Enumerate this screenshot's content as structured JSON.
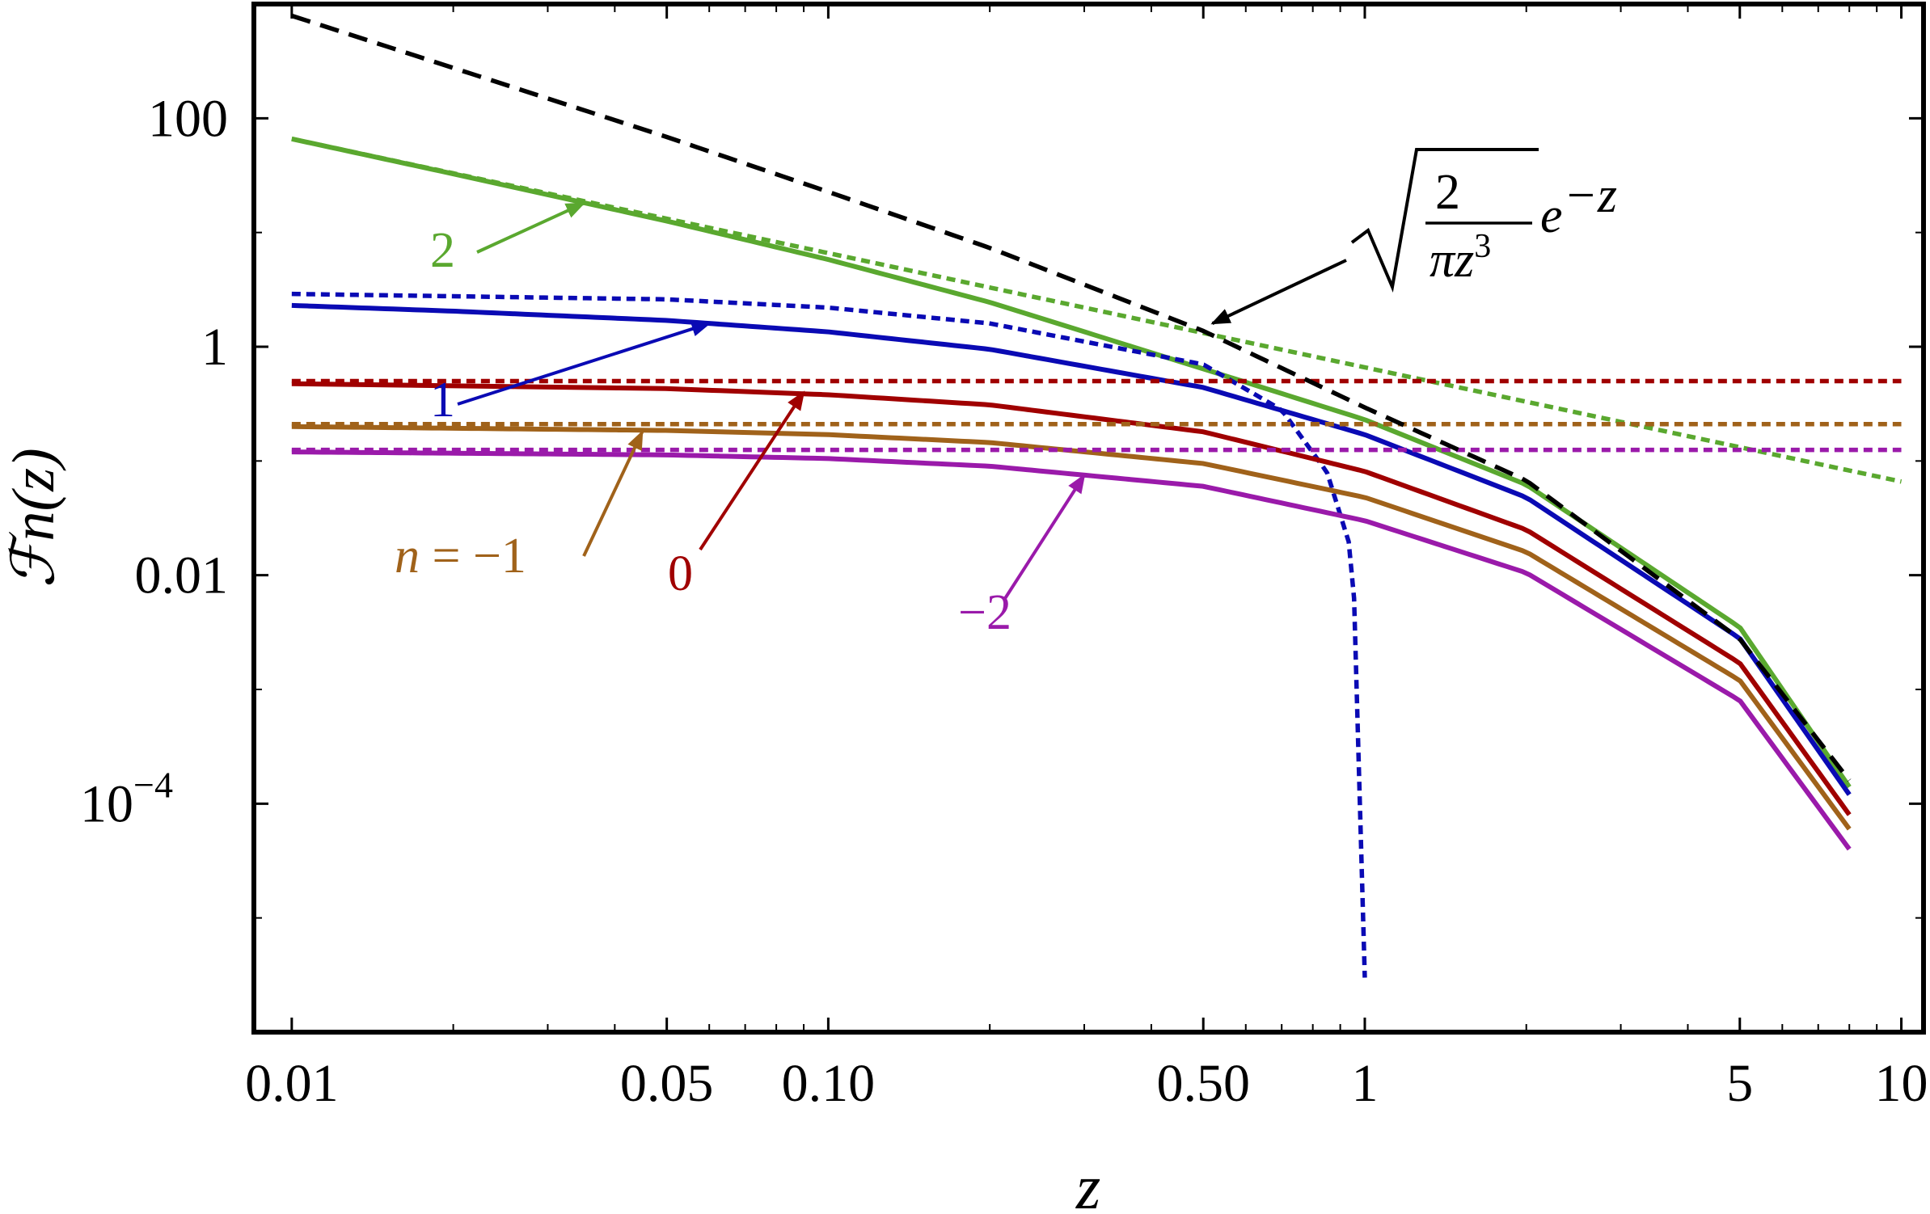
{
  "chart_data": {
    "type": "line",
    "title": "",
    "xlabel": "z",
    "ylabel": "ℱn(z)",
    "x_scale": "log",
    "y_scale": "log",
    "xlim": [
      0.0085,
      11
    ],
    "ylim": [
      1e-06,
      1000
    ],
    "x_ticks": [
      {
        "value": 0.01,
        "label": "0.01"
      },
      {
        "value": 0.05,
        "label": "0.05"
      },
      {
        "value": 0.1,
        "label": "0.10"
      },
      {
        "value": 0.5,
        "label": "0.50"
      },
      {
        "value": 1,
        "label": "1"
      },
      {
        "value": 5,
        "label": "5"
      },
      {
        "value": 10,
        "label": "10"
      }
    ],
    "y_ticks": [
      {
        "value": 100,
        "label": "100"
      },
      {
        "value": 1,
        "label": "1"
      },
      {
        "value": 0.01,
        "label": "0.01"
      },
      {
        "value": 0.0001,
        "label": "10",
        "exponent": "−4"
      }
    ],
    "grid": false,
    "legend": "none",
    "colors": {
      "n2": "#5aa82f",
      "n1": "#0a0ab4",
      "n0": "#a00000",
      "nm1": "#a0621a",
      "nm2": "#9a1aaa",
      "asymptote": "#000000"
    },
    "series": [
      {
        "name": "2",
        "style": "solid",
        "color": "#5aa82f",
        "x": [
          0.01,
          0.02,
          0.05,
          0.1,
          0.2,
          0.5,
          1,
          2,
          5,
          8
        ],
        "y": [
          66,
          32.6,
          12.6,
          5.8,
          2.45,
          0.64,
          0.23,
          0.062,
          0.0035,
          0.00014
        ]
      },
      {
        "name": "2",
        "style": "dotted",
        "color": "#5aa82f",
        "x": [
          0.01,
          0.05,
          0.1,
          0.5,
          1,
          2,
          5,
          10
        ],
        "y": [
          66,
          13.2,
          6.6,
          1.32,
          0.66,
          0.33,
          0.132,
          0.066
        ]
      },
      {
        "name": "1",
        "style": "solid",
        "color": "#0a0ab4",
        "x": [
          0.01,
          0.02,
          0.05,
          0.1,
          0.2,
          0.5,
          1,
          2,
          5,
          8
        ],
        "y": [
          2.3,
          2.05,
          1.7,
          1.35,
          0.95,
          0.44,
          0.17,
          0.048,
          0.0028,
          0.00012
        ]
      },
      {
        "name": "1",
        "style": "dotted",
        "color": "#0a0ab4",
        "x": [
          0.01,
          0.05,
          0.1,
          0.2,
          0.5,
          0.7,
          0.85,
          0.95,
          1.0
        ],
        "y": [
          2.9,
          2.6,
          2.2,
          1.6,
          0.7,
          0.28,
          0.08,
          0.015,
          3e-06
        ]
      },
      {
        "name": "0",
        "style": "solid",
        "color": "#a00000",
        "x": [
          0.01,
          0.05,
          0.1,
          0.2,
          0.5,
          1,
          2,
          5,
          8
        ],
        "y": [
          0.475,
          0.43,
          0.38,
          0.31,
          0.18,
          0.081,
          0.025,
          0.0017,
          8e-05
        ]
      },
      {
        "name": "0",
        "style": "dotted",
        "color": "#a00000",
        "x": [
          0.01,
          10
        ],
        "y": [
          0.5,
          0.5
        ]
      },
      {
        "name": "n = −1",
        "style": "solid",
        "color": "#a0621a",
        "x": [
          0.01,
          0.05,
          0.1,
          0.2,
          0.5,
          1,
          2,
          5,
          8
        ],
        "y": [
          0.2,
          0.185,
          0.17,
          0.145,
          0.095,
          0.048,
          0.016,
          0.0012,
          6e-05
        ]
      },
      {
        "name": "n = −1",
        "style": "dotted",
        "color": "#a0621a",
        "x": [
          0.01,
          10
        ],
        "y": [
          0.21,
          0.21
        ]
      },
      {
        "name": "−2",
        "style": "solid",
        "color": "#9a1aaa",
        "x": [
          0.01,
          0.05,
          0.1,
          0.2,
          0.5,
          1,
          2,
          5,
          8
        ],
        "y": [
          0.12,
          0.113,
          0.105,
          0.09,
          0.06,
          0.03,
          0.0105,
          0.0008,
          4e-05
        ]
      },
      {
        "name": "−2",
        "style": "dotted",
        "color": "#9a1aaa",
        "x": [
          0.01,
          10
        ],
        "y": [
          0.125,
          0.125
        ]
      },
      {
        "name": "asymptote",
        "style": "dashed",
        "color": "#000000",
        "x": [
          0.01,
          0.02,
          0.05,
          0.1,
          0.2,
          0.5,
          1,
          2,
          5,
          8
        ],
        "y": [
          790,
          276,
          68.6,
          22.7,
          7.33,
          1.375,
          0.294,
          0.0675,
          0.00276,
          0.00016
        ]
      }
    ],
    "annotations": [
      {
        "id": "n2",
        "text": "2",
        "color": "#5aa82f",
        "points_to": {
          "x": 0.035,
          "y": 18
        }
      },
      {
        "id": "n1",
        "text": "1",
        "color": "#0a0ab4",
        "points_to": {
          "x": 0.06,
          "y": 1.6
        }
      },
      {
        "id": "n0",
        "text": "0",
        "color": "#a00000",
        "points_to": {
          "x": 0.09,
          "y": 0.4
        }
      },
      {
        "id": "nm1",
        "text_var": "n",
        "text_rest": " = −1",
        "color": "#a0621a",
        "points_to": {
          "x": 0.045,
          "y": 0.18
        }
      },
      {
        "id": "nm2",
        "text": "−2",
        "color": "#9a1aaa",
        "points_to": {
          "x": 0.3,
          "y": 0.075
        }
      },
      {
        "id": "asymptote",
        "text_num": "2",
        "text_den_pi": "π",
        "text_den_var": "z",
        "text_den_exp": "3",
        "text_e": "e",
        "text_exp": "−z",
        "color": "#000000",
        "points_to": {
          "x": 0.52,
          "y": 1.6
        }
      }
    ]
  }
}
